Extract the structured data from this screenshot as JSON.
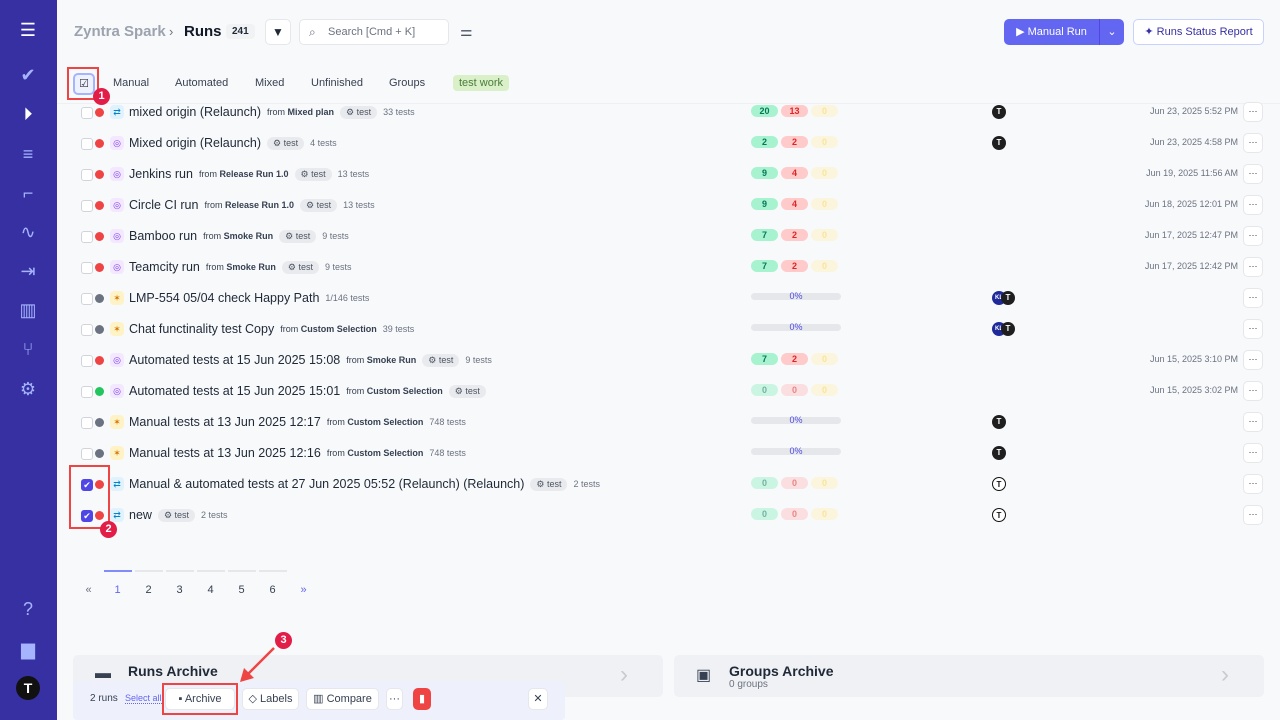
{
  "header": {
    "breadcrumb": "Zyntra Spark",
    "title": "Runs",
    "count": "241",
    "search_placeholder": "Search [Cmd + K]",
    "manual_run": "Manual Run",
    "report": "Runs Status Report"
  },
  "tabs": [
    "Manual",
    "Automated",
    "Mixed",
    "Unfinished",
    "Groups",
    "test work"
  ],
  "colors": {
    "sidebar": "#3730a3",
    "accent": "#6366f1",
    "failed": "#ef4444",
    "passed": "#22c55e"
  },
  "rows": [
    {
      "title": "mixed origin (Relaunch)",
      "from": "Mixed plan",
      "tag": "test",
      "tests": "33 tests",
      "type": "mixed",
      "status": "failed",
      "stats": [
        20,
        13,
        0
      ],
      "avatars": [
        "T"
      ],
      "date": "Jun 23, 2025 5:52 PM",
      "checked": false
    },
    {
      "title": "Mixed origin (Relaunch)",
      "from": "",
      "tag": "test",
      "tests": "4 tests",
      "type": "automated",
      "status": "failed",
      "stats": [
        2,
        2,
        0
      ],
      "avatars": [
        "T"
      ],
      "date": "Jun 23, 2025 4:58 PM",
      "checked": false
    },
    {
      "title": "Jenkins run",
      "from": "Release Run 1.0",
      "tag": "test",
      "tests": "13 tests",
      "type": "automated",
      "status": "failed",
      "stats": [
        9,
        4,
        0
      ],
      "avatars": [],
      "date": "Jun 19, 2025 11:56 AM",
      "checked": false
    },
    {
      "title": "Circle CI run",
      "from": "Release Run 1.0",
      "tag": "test",
      "tests": "13 tests",
      "type": "automated",
      "status": "failed",
      "stats": [
        9,
        4,
        0
      ],
      "avatars": [],
      "date": "Jun 18, 2025 12:01 PM",
      "checked": false
    },
    {
      "title": "Bamboo run",
      "from": "Smoke Run",
      "tag": "test",
      "tests": "9 tests",
      "type": "automated",
      "status": "failed",
      "stats": [
        7,
        2,
        0
      ],
      "avatars": [],
      "date": "Jun 17, 2025 12:47 PM",
      "checked": false
    },
    {
      "title": "Teamcity run",
      "from": "Smoke Run",
      "tag": "test",
      "tests": "9 tests",
      "type": "automated",
      "status": "failed",
      "stats": [
        7,
        2,
        0
      ],
      "avatars": [],
      "date": "Jun 17, 2025 12:42 PM",
      "checked": false
    },
    {
      "title": "LMP-554 05/04 check Happy Path",
      "from": "",
      "tag": "",
      "tests": "1/146 tests",
      "type": "manual",
      "status": "pending",
      "progress": "0%",
      "avatars": [
        "KL",
        "T"
      ],
      "date": "",
      "checked": false
    },
    {
      "title": "Chat functinality test Copy",
      "from": "Custom Selection",
      "tag": "",
      "tests": "39 tests",
      "type": "manual",
      "status": "pending",
      "progress": "0%",
      "avatars": [
        "KL",
        "T"
      ],
      "date": "",
      "checked": false
    },
    {
      "title": "Automated tests at 15 Jun 2025 15:08",
      "from": "Smoke Run",
      "tag": "test",
      "tests": "9 tests",
      "type": "automated",
      "status": "failed",
      "stats": [
        7,
        2,
        0
      ],
      "avatars": [],
      "date": "Jun 15, 2025 3:10 PM",
      "checked": false
    },
    {
      "title": "Automated tests at 15 Jun 2025 15:01",
      "from": "Custom Selection",
      "tag": "test",
      "tests": "",
      "type": "automated",
      "status": "passed",
      "stats": [
        0,
        0,
        0
      ],
      "avatars": [],
      "date": "Jun 15, 2025 3:02 PM",
      "checked": false
    },
    {
      "title": "Manual tests at 13 Jun 2025 12:17",
      "from": "Custom Selection",
      "tag": "",
      "tests": "748 tests",
      "type": "manual",
      "status": "pending",
      "progress": "0%",
      "avatars": [
        "T"
      ],
      "date": "",
      "checked": false
    },
    {
      "title": "Manual tests at 13 Jun 2025 12:16",
      "from": "Custom Selection",
      "tag": "",
      "tests": "748 tests",
      "type": "manual",
      "status": "pending",
      "progress": "0%",
      "avatars": [
        "T"
      ],
      "date": "",
      "checked": false
    },
    {
      "title": "Manual & automated tests at 27 Jun 2025 05:52 (Relaunch) (Relaunch)",
      "from": "",
      "tag": "test",
      "tests": "2 tests",
      "type": "mixed",
      "status": "failed",
      "stats": [
        0,
        0,
        0
      ],
      "avatars": [
        "T-outline"
      ],
      "date": "",
      "checked": true
    },
    {
      "title": "new",
      "from": "",
      "tag": "test",
      "tests": "2 tests",
      "type": "mixed",
      "status": "failed",
      "stats": [
        0,
        0,
        0
      ],
      "avatars": [
        "T-outline"
      ],
      "date": "",
      "checked": true
    }
  ],
  "from_label": "from",
  "pagination": {
    "prev": "«",
    "pages": [
      "1",
      "2",
      "3",
      "4",
      "5",
      "6"
    ],
    "next": "»",
    "current": "1"
  },
  "archive": {
    "runs_title": "Runs Archive",
    "groups_title": "Groups Archive",
    "groups_sub": "0 groups"
  },
  "bulk": {
    "count": "2 runs",
    "select_all": "Select all",
    "archive": "Archive",
    "labels": "Labels",
    "compare": "Compare"
  },
  "annotations": [
    "1",
    "2",
    "3"
  ]
}
